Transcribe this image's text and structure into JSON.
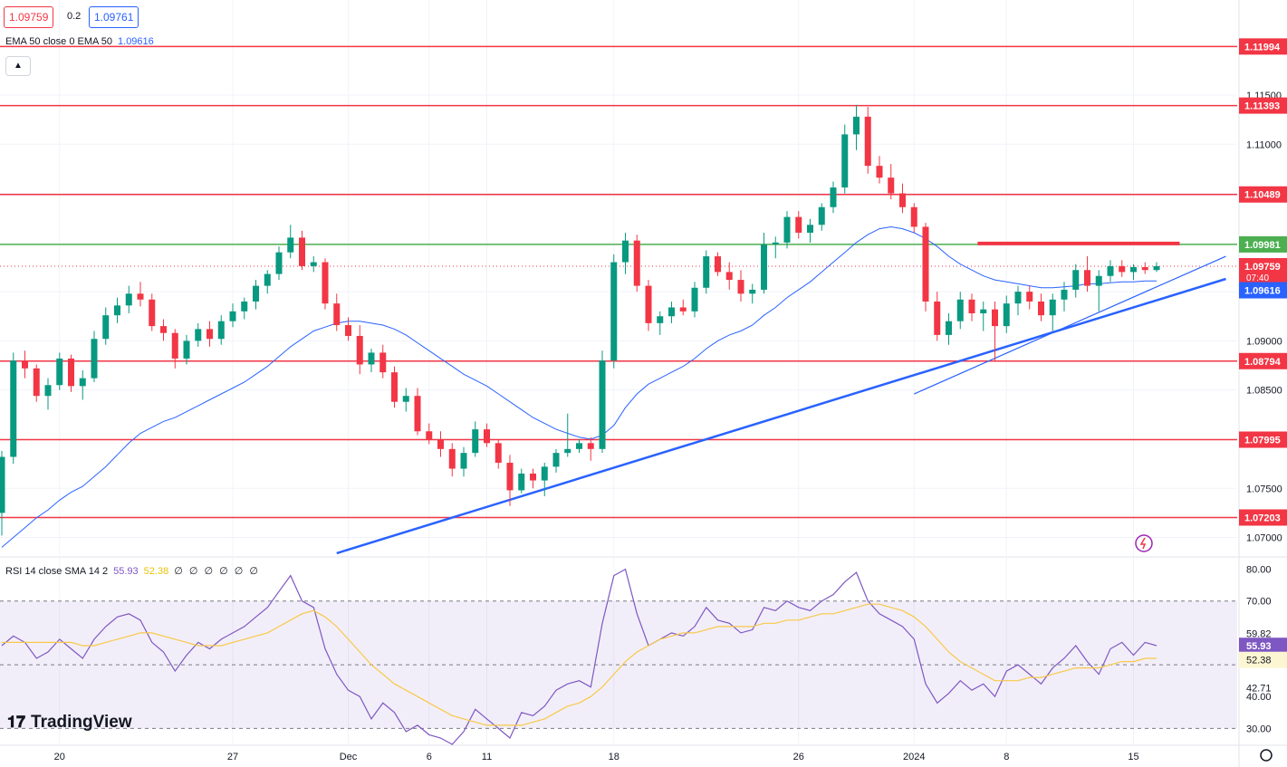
{
  "header": {
    "bid": "1.09759",
    "spread": "0.2",
    "ask": "1.09761",
    "ema_legend": "EMA 50 close 0 EMA 50",
    "ema_value": "1.09616",
    "collapse_icon": "chevron-up-icon"
  },
  "rsi_legend": {
    "label": "RSI 14 close SMA 14 2",
    "rsi_value": "55.93",
    "sma_value": "52.38",
    "placeholders": "∅ ∅ ∅ ∅ ∅ ∅"
  },
  "brand": "TradingView",
  "colors": {
    "bull": "#089981",
    "bear": "#f23645",
    "ema": "#2962ff",
    "rsi": "#7e57c2",
    "rsi_sma": "#f7c948",
    "level": "#f23645",
    "green_level": "#4caf50",
    "trendline": "#2962ff"
  },
  "chart_data": [
    {
      "type": "candlestick",
      "series_name": "EUR/USD",
      "y_axis_ticks": [
        1.07,
        1.075,
        1.08,
        1.085,
        1.09,
        1.095,
        1.1,
        1.105,
        1.11,
        1.115
      ],
      "y_axis_labels": [
        "1.07000",
        "1.07500",
        "1.08000",
        "1.08500",
        "1.09000",
        "",
        "",
        "",
        "1.11000",
        "1.11500"
      ],
      "ylim": [
        1.0683,
        1.1243
      ],
      "x_axis_labels": [
        "20",
        "27",
        "Dec",
        "6",
        "11",
        "18",
        "26",
        "2024",
        "8",
        "15"
      ],
      "x_axis_label_bars": [
        5,
        20,
        30,
        37,
        42,
        53,
        69,
        79,
        87,
        98
      ],
      "bar_count": 101,
      "horizontal_levels": [
        {
          "value": 1.11994,
          "label": "1.11994",
          "color": "#f23645"
        },
        {
          "value": 1.11393,
          "label": "1.11393",
          "color": "#f23645"
        },
        {
          "value": 1.10489,
          "label": "1.10489",
          "color": "#f23645"
        },
        {
          "value": 1.09981,
          "label": "1.09981",
          "color": "#4caf50"
        },
        {
          "value": 1.08794,
          "label": "1.08794",
          "color": "#f23645"
        },
        {
          "value": 1.07995,
          "label": "1.07995",
          "color": "#f23645"
        },
        {
          "value": 1.07203,
          "label": "1.07203",
          "color": "#f23645"
        }
      ],
      "resistance_segment": {
        "start_bar": 84.5,
        "end_bar": 102,
        "value": 1.0999
      },
      "trendlines": [
        {
          "start_bar": 29,
          "start_value": 1.0684,
          "end_bar": 106,
          "end_value": 1.0963,
          "width": 2.5
        },
        {
          "start_bar": 79,
          "start_value": 1.0846,
          "end_bar": 106,
          "end_value": 1.0986,
          "width": 1.2
        }
      ],
      "current_price": {
        "value": 1.09759,
        "label": "1.09759",
        "countdown": "07:40"
      },
      "ema_tag": {
        "value": 1.09616,
        "label": "1.09616"
      },
      "ohlc": [
        [
          1.0725,
          1.0788,
          1.0702,
          1.0782
        ],
        [
          1.0782,
          1.0888,
          1.0775,
          1.088
        ],
        [
          1.088,
          1.089,
          1.0862,
          1.0872
        ],
        [
          1.0872,
          1.0876,
          1.0838,
          1.0844
        ],
        [
          1.0844,
          1.0862,
          1.083,
          1.0855
        ],
        [
          1.0855,
          1.0888,
          1.085,
          1.0882
        ],
        [
          1.0882,
          1.0886,
          1.0848,
          1.0854
        ],
        [
          1.0854,
          1.087,
          1.084,
          1.0862
        ],
        [
          1.0862,
          1.091,
          1.0858,
          1.0902
        ],
        [
          1.0902,
          1.0934,
          1.0896,
          1.0926
        ],
        [
          1.0926,
          1.0944,
          1.0918,
          1.0936
        ],
        [
          1.0936,
          1.0956,
          1.0928,
          1.0948
        ],
        [
          1.0948,
          1.096,
          1.0935,
          1.0942
        ],
        [
          1.0942,
          1.0948,
          1.091,
          1.0915
        ],
        [
          1.0915,
          1.0922,
          1.09,
          1.0908
        ],
        [
          1.0908,
          1.0912,
          1.0872,
          1.0882
        ],
        [
          1.0882,
          1.0906,
          1.0876,
          1.09
        ],
        [
          1.09,
          1.0918,
          1.0894,
          1.0912
        ],
        [
          1.0912,
          1.092,
          1.0894,
          1.0902
        ],
        [
          1.0902,
          1.0926,
          1.0896,
          1.092
        ],
        [
          1.092,
          1.0938,
          1.0914,
          1.093
        ],
        [
          1.093,
          1.0944,
          1.0922,
          1.094
        ],
        [
          1.094,
          1.0962,
          1.0932,
          1.0956
        ],
        [
          1.0956,
          1.0972,
          1.0948,
          1.0968
        ],
        [
          1.0968,
          1.0996,
          1.0962,
          1.099
        ],
        [
          1.099,
          1.1018,
          1.0984,
          1.1005
        ],
        [
          1.1005,
          1.1012,
          1.0972,
          1.0976
        ],
        [
          1.0976,
          1.0986,
          1.097,
          1.098
        ],
        [
          1.098,
          1.0984,
          1.0932,
          1.0938
        ],
        [
          1.0938,
          1.0948,
          1.091,
          1.0916
        ],
        [
          1.0916,
          1.0924,
          1.09,
          1.0905
        ],
        [
          1.0905,
          1.0916,
          1.0866,
          1.0876
        ],
        [
          1.0876,
          1.0892,
          1.0868,
          1.0888
        ],
        [
          1.0888,
          1.0896,
          1.0862,
          1.0868
        ],
        [
          1.0868,
          1.0874,
          1.0832,
          1.0838
        ],
        [
          1.0838,
          1.0852,
          1.0828,
          1.0844
        ],
        [
          1.0844,
          1.0852,
          1.0804,
          1.0808
        ],
        [
          1.0808,
          1.0816,
          1.0795,
          1.08
        ],
        [
          1.08,
          1.0808,
          1.0782,
          1.079
        ],
        [
          1.079,
          1.0796,
          1.0762,
          1.077
        ],
        [
          1.077,
          1.0792,
          1.0762,
          1.0786
        ],
        [
          1.0786,
          1.0818,
          1.0782,
          1.081
        ],
        [
          1.081,
          1.0816,
          1.0792,
          1.0796
        ],
        [
          1.0796,
          1.08,
          1.077,
          1.0776
        ],
        [
          1.0776,
          1.0784,
          1.0732,
          1.0748
        ],
        [
          1.0748,
          1.077,
          1.0745,
          1.0765
        ],
        [
          1.0765,
          1.077,
          1.075,
          1.0758
        ],
        [
          1.0758,
          1.0776,
          1.0742,
          1.0772
        ],
        [
          1.0772,
          1.079,
          1.0766,
          1.0786
        ],
        [
          1.0786,
          1.0826,
          1.0782,
          1.079
        ],
        [
          1.079,
          1.08,
          1.0786,
          1.0796
        ],
        [
          1.0796,
          1.0802,
          1.0778,
          1.079
        ],
        [
          1.079,
          1.089,
          1.0786,
          1.088
        ],
        [
          1.088,
          1.0988,
          1.0872,
          1.098
        ],
        [
          1.098,
          1.101,
          1.0968,
          1.1002
        ],
        [
          1.1002,
          1.1008,
          1.095,
          1.0956
        ],
        [
          1.0956,
          1.0962,
          1.091,
          1.0918
        ],
        [
          1.0918,
          1.093,
          1.0906,
          1.0925
        ],
        [
          1.0925,
          1.094,
          1.0918,
          1.0934
        ],
        [
          1.0934,
          1.0942,
          1.0926,
          1.093
        ],
        [
          1.093,
          1.096,
          1.0924,
          1.0954
        ],
        [
          1.0954,
          1.0992,
          1.0948,
          1.0986
        ],
        [
          1.0986,
          1.099,
          1.0966,
          1.097
        ],
        [
          1.097,
          1.098,
          1.0952,
          1.0962
        ],
        [
          1.0962,
          1.0972,
          1.094,
          1.0948
        ],
        [
          1.0948,
          1.0958,
          1.0938,
          1.0952
        ],
        [
          1.0952,
          1.101,
          1.0948,
          1.0998
        ],
        [
          1.0998,
          1.1006,
          1.0984,
          1.1
        ],
        [
          1.1,
          1.1032,
          1.0994,
          1.1026
        ],
        [
          1.1026,
          1.1032,
          1.1004,
          1.101
        ],
        [
          1.101,
          1.1024,
          1.1,
          1.1018
        ],
        [
          1.1018,
          1.104,
          1.1012,
          1.1036
        ],
        [
          1.1036,
          1.1062,
          1.103,
          1.1056
        ],
        [
          1.1056,
          1.112,
          1.105,
          1.111
        ],
        [
          1.111,
          1.114,
          1.1094,
          1.1128
        ],
        [
          1.1128,
          1.1138,
          1.107,
          1.1078
        ],
        [
          1.1078,
          1.1088,
          1.106,
          1.1066
        ],
        [
          1.1066,
          1.108,
          1.1044,
          1.105
        ],
        [
          1.105,
          1.106,
          1.103,
          1.1036
        ],
        [
          1.1036,
          1.104,
          1.101,
          1.1016
        ],
        [
          1.1016,
          1.102,
          1.093,
          1.094
        ],
        [
          1.094,
          1.095,
          1.09,
          1.0906
        ],
        [
          1.0906,
          1.0928,
          1.0896,
          1.092
        ],
        [
          1.092,
          1.095,
          1.0912,
          1.0942
        ],
        [
          1.0942,
          1.0948,
          1.092,
          1.0928
        ],
        [
          1.0928,
          1.094,
          1.091,
          1.0932
        ],
        [
          1.0932,
          1.094,
          1.088,
          1.0915
        ],
        [
          1.0915,
          1.0946,
          1.0908,
          1.0938
        ],
        [
          1.0938,
          1.0956,
          1.0926,
          1.095
        ],
        [
          1.095,
          1.0956,
          1.0932,
          1.094
        ],
        [
          1.094,
          1.0948,
          1.092,
          1.0926
        ],
        [
          1.0926,
          1.0948,
          1.091,
          1.0942
        ],
        [
          1.0942,
          1.096,
          1.093,
          1.0952
        ],
        [
          1.0952,
          1.0978,
          1.0944,
          1.0972
        ],
        [
          1.0972,
          1.0986,
          1.095,
          1.0956
        ],
        [
          1.0956,
          1.0972,
          1.093,
          1.0966
        ],
        [
          1.0966,
          1.0982,
          1.096,
          1.0976
        ],
        [
          1.0976,
          1.0982,
          1.0965,
          1.097
        ],
        [
          1.097,
          1.0978,
          1.0962,
          1.0975
        ],
        [
          1.0975,
          1.098,
          1.0968,
          1.0972
        ],
        [
          1.0972,
          1.098,
          1.097,
          1.0976
        ]
      ],
      "ema": [
        1.069,
        1.07,
        1.071,
        1.072,
        1.0728,
        1.0738,
        1.0746,
        1.0752,
        1.0762,
        1.0772,
        1.0784,
        1.0796,
        1.0806,
        1.0812,
        1.0818,
        1.0822,
        1.0828,
        1.0834,
        1.084,
        1.0846,
        1.0852,
        1.0858,
        1.0866,
        1.0874,
        1.0884,
        1.0894,
        1.0902,
        1.091,
        1.0914,
        1.0918,
        1.092,
        1.092,
        1.0918,
        1.0916,
        1.0912,
        1.0906,
        1.0898,
        1.089,
        1.0882,
        1.0874,
        1.0866,
        1.086,
        1.0854,
        1.0846,
        1.0838,
        1.083,
        1.0822,
        1.0816,
        1.081,
        1.0806,
        1.0802,
        1.08,
        1.0804,
        1.0814,
        1.0832,
        1.0846,
        1.0856,
        1.0862,
        1.0868,
        1.0874,
        1.0882,
        1.0892,
        1.09,
        1.0906,
        1.091,
        1.0916,
        1.0926,
        1.0934,
        1.0944,
        1.0952,
        1.096,
        1.097,
        1.098,
        1.099,
        1.1,
        1.1008,
        1.1014,
        1.1016,
        1.1014,
        1.101,
        1.1004,
        1.0996,
        1.0986,
        1.0978,
        1.0972,
        1.0966,
        1.0962,
        1.096,
        1.0958,
        1.0956,
        1.0954,
        1.0954,
        1.0955,
        1.0956,
        1.0958,
        1.0958,
        1.0959,
        1.096,
        1.096,
        1.0961,
        1.0961
      ]
    },
    {
      "type": "line",
      "series_name": "RSI 14",
      "ylim": [
        25,
        83
      ],
      "y_axis_labels": [
        "80.00",
        "70.00",
        "59.82",
        "55.93",
        "52.38",
        "42.71",
        "40.00",
        "30.00"
      ],
      "levels": [
        70,
        50,
        30
      ],
      "rsi": [
        56,
        59,
        57,
        52,
        54,
        58,
        55,
        52,
        58,
        62,
        65,
        66,
        64,
        57,
        54,
        48,
        53,
        57,
        55,
        58,
        60,
        62,
        65,
        68,
        73,
        78,
        70,
        68,
        55,
        47,
        42,
        40,
        33,
        38,
        35,
        29,
        31,
        28,
        27,
        25,
        29,
        36,
        33,
        30,
        27,
        35,
        34,
        37,
        42,
        44,
        45,
        43,
        63,
        78,
        80,
        66,
        56,
        58,
        60,
        59,
        62,
        68,
        64,
        63,
        60,
        61,
        68,
        67,
        70,
        68,
        67,
        70,
        72,
        76,
        79,
        70,
        66,
        64,
        62,
        58,
        44,
        38,
        41,
        45,
        42,
        44,
        40,
        48,
        50,
        47,
        44,
        49,
        52,
        56,
        51,
        47,
        55,
        57,
        53,
        57,
        56
      ],
      "sma": [
        57,
        57,
        57,
        57,
        57,
        57,
        57,
        56,
        56,
        57,
        58,
        59,
        60,
        60,
        59,
        58,
        57,
        56,
        56,
        56,
        57,
        58,
        59,
        60,
        62,
        64,
        66,
        67,
        65,
        62,
        58,
        54,
        50,
        47,
        44,
        42,
        40,
        38,
        36,
        34,
        33,
        32,
        31,
        31,
        31,
        31,
        32,
        33,
        35,
        37,
        38,
        40,
        43,
        47,
        51,
        54,
        56,
        58,
        59,
        60,
        60,
        61,
        62,
        62,
        62,
        62,
        63,
        63,
        64,
        64,
        65,
        66,
        66,
        67,
        68,
        69,
        69,
        68,
        67,
        65,
        62,
        58,
        54,
        51,
        49,
        47,
        45,
        45,
        45,
        46,
        46,
        47,
        48,
        49,
        49,
        49,
        50,
        51,
        51,
        52,
        52
      ]
    }
  ]
}
